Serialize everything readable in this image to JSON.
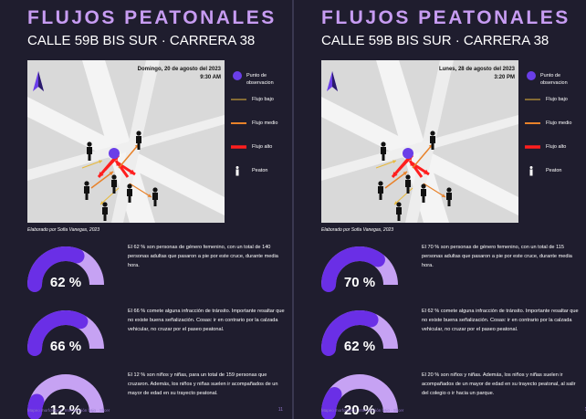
{
  "pages": [
    {
      "title": "FLUJOS PEATONALES",
      "subtitle": "CALLE 59B BIS SUR · CARRERA 38",
      "map": {
        "date": "Domingo, 20 de agosto del 2023",
        "time": "9:30 AM"
      },
      "legend": [
        "Punto de observacion",
        "Flujo bajo",
        "Flujo medio",
        "Flujo alto",
        "Peaton"
      ],
      "credit": "Elaborado por Sofia Vanegas, 2023",
      "range": [
        0,
        100
      ],
      "stats": [
        {
          "value": 62,
          "value_label": "62 %",
          "text": "El 62 % son personas de género femenino, con un total de 140 personas adultas que pasaron a pie por este cruce, durante media hora."
        },
        {
          "value": 66,
          "value_label": "66 %",
          "text": "El 66 % comete alguna infracción de tránsito. Importante resaltar que no existe buena señalización. Cosas: ir en contrario por la calzada vehicular, no cruzar por el paseo peatonal."
        },
        {
          "value": 12,
          "value_label": "12 %",
          "text": "El 12 % son niños y niñas, para un total de 159 personas que cruzaron. Además, los niños y niñas suelen ir acompañados de un mayor de edad en su trayecto peatonal."
        }
      ],
      "footer": "Mapeo morfológico: Intervención bajo · Slicer",
      "page_number": "11"
    },
    {
      "title": "FLUJOS PEATONALES",
      "subtitle": "CALLE 59B BIS SUR · CARRERA 38",
      "map": {
        "date": "Lunes, 28 de agosto del 2023",
        "time": "3:20 PM"
      },
      "legend": [
        "Punto de observacion",
        "Flujo bajo",
        "Flujo medio",
        "Flujo alto",
        "Peaton"
      ],
      "credit": "Elaborado por Sofia Vanegas, 2023",
      "range": [
        0,
        100
      ],
      "stats": [
        {
          "value": 70,
          "value_label": "70 %",
          "text": "El 70 % son personas de género femenino, con un total de 115 personas adultas que pasaron a pie por este cruce, durante media hora."
        },
        {
          "value": 62,
          "value_label": "62 %",
          "text": "El 62 % comete alguna infracción de tránsito. Importante resaltar que no existe buena señalización. Cosas: ir en contrario por la calzada vehicular, no cruzar por el paseo peatonal."
        },
        {
          "value": 20,
          "value_label": "20 %",
          "text": "El 20 % son niños y niñas. Además, los niños y niñas suelen ir acompañados de un mayor de edad en su trayecto peatonal, al salir del colegio o ir hacia un parque."
        }
      ],
      "footer": "Mapeo morfológico: Intervención bajo · Slicer",
      "page_number": "12"
    }
  ]
}
